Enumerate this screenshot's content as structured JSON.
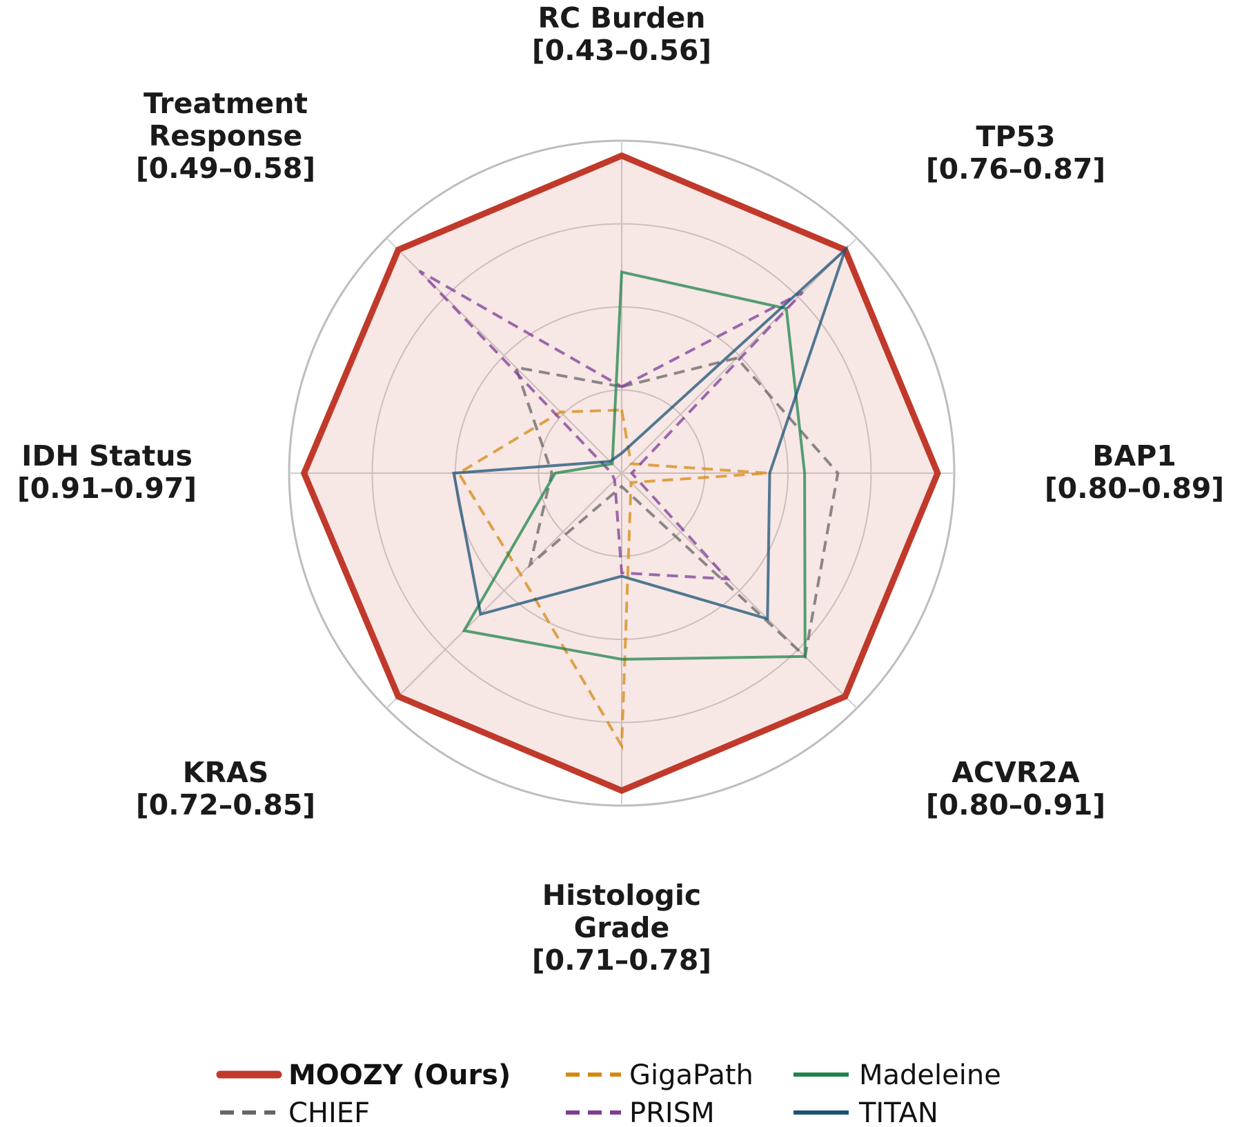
{
  "chart_data": {
    "type": "radar",
    "axes": [
      {
        "label": [
          "RC Burden",
          "[0.43–0.56]"
        ]
      },
      {
        "label": [
          "TP53",
          "[0.76–0.87]"
        ]
      },
      {
        "label": [
          "BAP1",
          "[0.80–0.89]"
        ]
      },
      {
        "label": [
          "ACVR2A",
          "[0.80–0.91]"
        ]
      },
      {
        "label": [
          "Histologic",
          "Grade",
          "[0.71–0.78]"
        ]
      },
      {
        "label": [
          "KRAS",
          "[0.72–0.85]"
        ]
      },
      {
        "label": [
          "IDH Status",
          "[0.91–0.97]"
        ]
      },
      {
        "label": [
          "Treatment",
          "Response",
          "[0.49–0.58]"
        ]
      }
    ],
    "rlim": [
      0,
      1
    ],
    "rings": [
      0.25,
      0.5,
      0.75,
      1.0
    ],
    "grid": true,
    "legend_position": "bottom",
    "series": [
      {
        "name": "MOOZY (Ours)",
        "color": "#c0392b",
        "style": "solid",
        "fill": true,
        "values": [
          0.955,
          0.95,
          0.95,
          0.95,
          0.955,
          0.95,
          0.955,
          0.95
        ]
      },
      {
        "name": "CHIEF",
        "color": "#666666",
        "style": "dashed",
        "values": [
          0.26,
          0.49,
          0.65,
          0.78,
          0.04,
          0.39,
          0.21,
          0.45
        ]
      },
      {
        "name": "GigaPath",
        "color": "#d68910",
        "style": "dashed",
        "values": [
          0.19,
          0.04,
          0.44,
          0.04,
          0.82,
          0.43,
          0.49,
          0.26
        ]
      },
      {
        "name": "PRISM",
        "color": "#7d3c98",
        "style": "dashed",
        "values": [
          0.26,
          0.77,
          0.03,
          0.45,
          0.3,
          0.03,
          0.03,
          0.86
        ]
      },
      {
        "name": "Madeleine",
        "color": "#1e8449",
        "style": "solid",
        "values": [
          0.605,
          0.7,
          0.55,
          0.78,
          0.56,
          0.67,
          0.2,
          0.04
        ]
      },
      {
        "name": "TITAN",
        "color": "#1a5276",
        "style": "solid",
        "values": [
          0.06,
          0.95,
          0.445,
          0.62,
          0.31,
          0.6,
          0.505,
          0.05
        ]
      }
    ]
  }
}
